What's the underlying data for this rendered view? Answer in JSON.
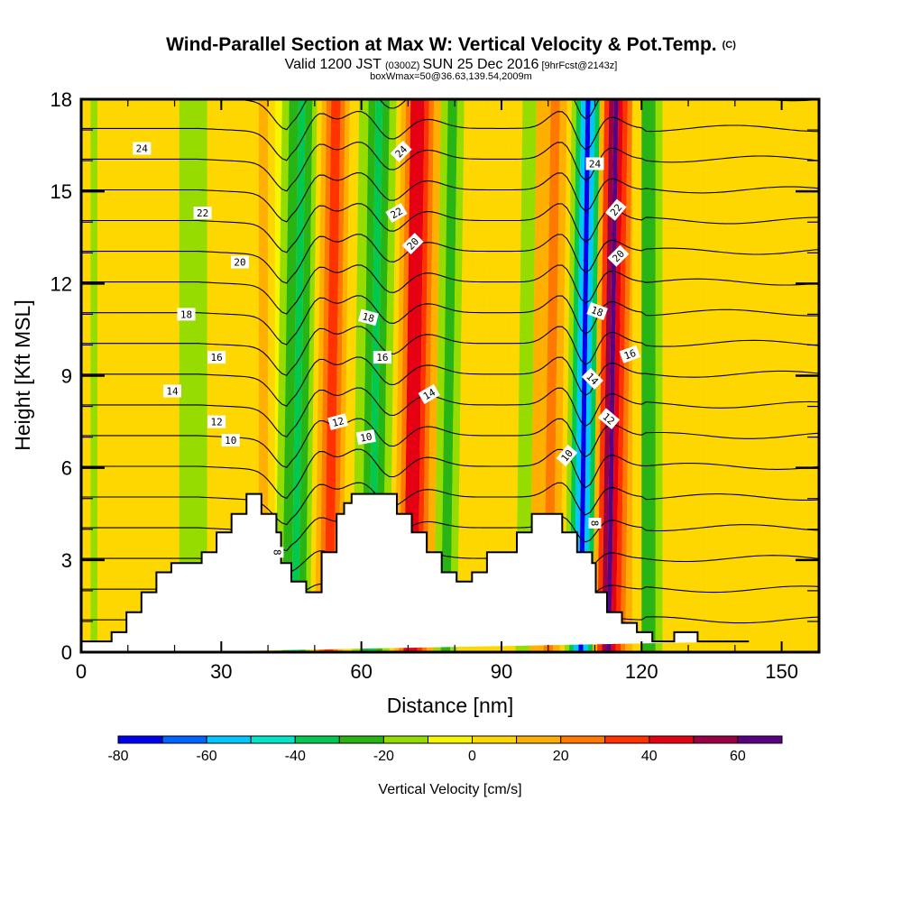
{
  "chart_data": {
    "type": "heatmap",
    "title": "Wind-Parallel Section at Max W: Vertical Velocity & Pot.Temp.",
    "title_mark": "(C)",
    "subtitle_main": "Valid 1200 JST",
    "subtitle_z": "(0300Z)",
    "subtitle_date": "SUN 25 Dec 2016",
    "subtitle_fcst": "[9hrFcst@2143z]",
    "subtitle2": "boxWmax=50@36.63,139.54,2009m",
    "xlabel": "Distance [nm]",
    "ylabel": "Height [Kft MSL]",
    "xlim": [
      0,
      158
    ],
    "ylim": [
      0,
      18
    ],
    "x_ticks": [
      "0",
      "30",
      "60",
      "90",
      "120",
      "150"
    ],
    "x_tick_values": [
      0,
      30,
      60,
      90,
      120,
      150
    ],
    "x_minor_step": 10,
    "y_ticks": [
      "0",
      "3",
      "6",
      "9",
      "12",
      "15",
      "18"
    ],
    "y_tick_values": [
      0,
      3,
      6,
      9,
      12,
      15,
      18
    ],
    "y_minor_step": 1,
    "colorbar": {
      "label": "Vertical Velocity [cm/s]",
      "bounds": [
        -80,
        -70,
        -60,
        -50,
        -40,
        -30,
        -20,
        -10,
        0,
        10,
        20,
        30,
        40,
        50,
        60,
        70
      ],
      "tick_labels": [
        "-80",
        "-60",
        "-40",
        "-20",
        "0",
        "20",
        "40",
        "60"
      ],
      "tick_values": [
        -80,
        -60,
        -40,
        -20,
        0,
        20,
        40,
        60
      ],
      "colors": [
        "#0000f0",
        "#0064ff",
        "#00c8ff",
        "#00e6c8",
        "#00c850",
        "#28b414",
        "#96dc00",
        "#f5f500",
        "#ffd700",
        "#ffaf00",
        "#ff7800",
        "#ff3200",
        "#e60014",
        "#9b0046",
        "#5a0082"
      ]
    },
    "velocity_bands": [
      {
        "x_nm": [
          0,
          2
        ],
        "w": 0
      },
      {
        "x_nm": [
          2,
          3.5
        ],
        "w": -15
      },
      {
        "x_nm": [
          3.5,
          8
        ],
        "w": 0
      },
      {
        "x_nm": [
          8,
          14
        ],
        "w": 5
      },
      {
        "x_nm": [
          14,
          21
        ],
        "w": 0
      },
      {
        "x_nm": [
          21,
          27
        ],
        "w": -15
      },
      {
        "x_nm": [
          27,
          30
        ],
        "w": 0
      },
      {
        "x_nm": [
          30,
          38
        ],
        "w": 5
      },
      {
        "x_nm": [
          38,
          40
        ],
        "w": 15
      },
      {
        "x_nm": [
          40,
          41.5
        ],
        "w": 0
      },
      {
        "x_nm": [
          41.5,
          43
        ],
        "w": -15
      },
      {
        "x_nm": [
          43,
          45
        ],
        "w": -25
      },
      {
        "x_nm": [
          45,
          46.5
        ],
        "w": -40
      },
      {
        "x_nm": [
          46.5,
          48
        ],
        "w": -25
      },
      {
        "x_nm": [
          48,
          49
        ],
        "w": -15
      },
      {
        "x_nm": [
          49,
          50
        ],
        "w": 0
      },
      {
        "x_nm": [
          50,
          51
        ],
        "w": 15
      },
      {
        "x_nm": [
          51,
          52
        ],
        "w": 25
      },
      {
        "x_nm": [
          52,
          54
        ],
        "w": 35
      },
      {
        "x_nm": [
          54,
          55
        ],
        "w": 25
      },
      {
        "x_nm": [
          55,
          56
        ],
        "w": 15
      },
      {
        "x_nm": [
          56,
          58
        ],
        "w": 0
      },
      {
        "x_nm": [
          58,
          60
        ],
        "w": -15
      },
      {
        "x_nm": [
          60,
          61.5
        ],
        "w": -25
      },
      {
        "x_nm": [
          61.5,
          63
        ],
        "w": -40
      },
      {
        "x_nm": [
          63,
          64.5
        ],
        "w": -25
      },
      {
        "x_nm": [
          64.5,
          66
        ],
        "w": -15
      },
      {
        "x_nm": [
          66,
          67
        ],
        "w": 0
      },
      {
        "x_nm": [
          67,
          68
        ],
        "w": 15
      },
      {
        "x_nm": [
          68,
          69
        ],
        "w": 25
      },
      {
        "x_nm": [
          69,
          72
        ],
        "w": 40
      },
      {
        "x_nm": [
          72,
          73
        ],
        "w": 35
      },
      {
        "x_nm": [
          73,
          74
        ],
        "w": 25
      },
      {
        "x_nm": [
          74,
          75.5
        ],
        "w": 15
      },
      {
        "x_nm": [
          75.5,
          77
        ],
        "w": -15
      },
      {
        "x_nm": [
          77,
          79
        ],
        "w": -25
      },
      {
        "x_nm": [
          79,
          80.5
        ],
        "w": -15
      },
      {
        "x_nm": [
          80.5,
          82
        ],
        "w": 0
      },
      {
        "x_nm": [
          82,
          86
        ],
        "w": 5
      },
      {
        "x_nm": [
          86,
          90
        ],
        "w": 0
      },
      {
        "x_nm": [
          90,
          93
        ],
        "w": 5
      },
      {
        "x_nm": [
          93,
          96
        ],
        "w": -15
      },
      {
        "x_nm": [
          96,
          99
        ],
        "w": 15
      },
      {
        "x_nm": [
          99,
          101
        ],
        "w": 25
      },
      {
        "x_nm": [
          101,
          102.5
        ],
        "w": 15
      },
      {
        "x_nm": [
          102.5,
          103.5
        ],
        "w": 0
      },
      {
        "x_nm": [
          103.5,
          104.5
        ],
        "w": -15
      },
      {
        "x_nm": [
          104.5,
          105.5
        ],
        "w": -35
      },
      {
        "x_nm": [
          105.5,
          106.5
        ],
        "w": -55
      },
      {
        "x_nm": [
          106.5,
          107.5
        ],
        "w": -75
      },
      {
        "x_nm": [
          107.5,
          108.5
        ],
        "w": -55
      },
      {
        "x_nm": [
          108.5,
          109.5
        ],
        "w": -35
      },
      {
        "x_nm": [
          109.5,
          110.5
        ],
        "w": 15
      },
      {
        "x_nm": [
          110.5,
          111.5
        ],
        "w": 35
      },
      {
        "x_nm": [
          111.5,
          112.5
        ],
        "w": 55
      },
      {
        "x_nm": [
          112.5,
          113.5
        ],
        "w": 65
      },
      {
        "x_nm": [
          113.5,
          114.5
        ],
        "w": 45
      },
      {
        "x_nm": [
          114.5,
          115.5
        ],
        "w": 35
      },
      {
        "x_nm": [
          115.5,
          116.5
        ],
        "w": 25
      },
      {
        "x_nm": [
          116.5,
          118
        ],
        "w": 15
      },
      {
        "x_nm": [
          118,
          120
        ],
        "w": 0
      },
      {
        "x_nm": [
          120,
          123
        ],
        "w": -25
      },
      {
        "x_nm": [
          123,
          124.5
        ],
        "w": -15
      },
      {
        "x_nm": [
          124.5,
          127
        ],
        "w": 0
      },
      {
        "x_nm": [
          127,
          134
        ],
        "w": 5
      },
      {
        "x_nm": [
          134,
          143
        ],
        "w": 0
      },
      {
        "x_nm": [
          143,
          158
        ],
        "w": 5
      }
    ],
    "terrain_kft": {
      "x_nm": [
        0,
        6.5,
        6.5,
        9.7,
        9.7,
        12.9,
        12.9,
        16.1,
        16.1,
        19.3,
        19.3,
        25.8,
        25.8,
        29,
        29,
        32.2,
        32.2,
        35.4,
        35.4,
        38.6,
        38.6,
        41.8,
        41.8,
        42.8,
        42.8,
        45,
        45,
        48.2,
        48.2,
        51.5,
        51.5,
        54.7,
        54.7,
        56.3,
        56.3,
        57.9,
        57.9,
        67.6,
        67.6,
        70.8,
        70.8,
        74,
        74,
        77.2,
        77.2,
        80.4,
        80.4,
        83.7,
        83.7,
        86.9,
        86.9,
        93.3,
        93.3,
        96.5,
        96.5,
        103,
        103,
        106.2,
        106.2,
        109.4,
        109.4,
        110.2,
        110.2,
        112.6,
        112.6,
        115.8,
        115.8,
        119,
        119,
        122.3,
        122.3,
        127,
        127,
        132,
        132,
        143,
        143,
        158
      ],
      "h_kft": [
        0.35,
        0.35,
        0.65,
        0.65,
        1.3,
        1.3,
        1.95,
        1.95,
        2.6,
        2.6,
        2.9,
        2.9,
        3.25,
        3.25,
        3.9,
        3.9,
        4.5,
        4.5,
        5.15,
        5.15,
        4.5,
        4.5,
        3.9,
        3.9,
        2.9,
        2.9,
        2.3,
        2.3,
        1.95,
        1.95,
        3.25,
        3.25,
        4.5,
        4.5,
        4.85,
        4.85,
        5.15,
        5.15,
        4.5,
        4.5,
        3.9,
        3.9,
        3.25,
        3.25,
        2.6,
        2.6,
        2.3,
        2.3,
        2.6,
        2.6,
        3.25,
        3.25,
        3.9,
        3.9,
        4.5,
        4.5,
        3.9,
        3.9,
        3.25,
        3.25,
        2.9,
        2.9,
        1.95,
        1.95,
        1.3,
        1.3,
        0.95,
        0.95,
        0.65,
        0.65,
        0.35,
        0.35,
        0.65,
        0.65,
        0.35,
        0.35
      ]
    },
    "theta_contours": {
      "levels": [
        8,
        9,
        10,
        11,
        12,
        13,
        14,
        15,
        16,
        17,
        18,
        19,
        20,
        21,
        22,
        23,
        24,
        25
      ],
      "labels": [
        {
          "text": "24",
          "x_nm": 13,
          "h_kft": 16.4,
          "angle": 0
        },
        {
          "text": "22",
          "x_nm": 26,
          "h_kft": 14.3,
          "angle": 0
        },
        {
          "text": "20",
          "x_nm": 34,
          "h_kft": 12.7,
          "angle": 0
        },
        {
          "text": "18",
          "x_nm": 22.5,
          "h_kft": 11.0,
          "angle": 0
        },
        {
          "text": "16",
          "x_nm": 29,
          "h_kft": 9.6,
          "angle": 0
        },
        {
          "text": "14",
          "x_nm": 19.5,
          "h_kft": 8.5,
          "angle": 0
        },
        {
          "text": "12",
          "x_nm": 29,
          "h_kft": 7.5,
          "angle": 0
        },
        {
          "text": "10",
          "x_nm": 32,
          "h_kft": 6.9,
          "angle": 0
        },
        {
          "text": "8",
          "x_nm": 42,
          "h_kft": 3.25,
          "angle": 90
        },
        {
          "text": "24",
          "x_nm": 68.5,
          "h_kft": 16.3,
          "angle": -45
        },
        {
          "text": "22",
          "x_nm": 67.5,
          "h_kft": 14.3,
          "angle": -30
        },
        {
          "text": "20",
          "x_nm": 71,
          "h_kft": 13.3,
          "angle": -45
        },
        {
          "text": "18",
          "x_nm": 61.5,
          "h_kft": 10.9,
          "angle": 15
        },
        {
          "text": "16",
          "x_nm": 64.5,
          "h_kft": 9.6,
          "angle": 0
        },
        {
          "text": "14",
          "x_nm": 74.5,
          "h_kft": 8.4,
          "angle": -30
        },
        {
          "text": "12",
          "x_nm": 55,
          "h_kft": 7.5,
          "angle": -15
        },
        {
          "text": "10",
          "x_nm": 61,
          "h_kft": 7.0,
          "angle": -10
        },
        {
          "text": "24",
          "x_nm": 110,
          "h_kft": 15.9,
          "angle": 0
        },
        {
          "text": "22",
          "x_nm": 114.5,
          "h_kft": 14.4,
          "angle": -50
        },
        {
          "text": "20",
          "x_nm": 115,
          "h_kft": 12.9,
          "angle": -45
        },
        {
          "text": "18",
          "x_nm": 110.5,
          "h_kft": 11.1,
          "angle": 20
        },
        {
          "text": "16",
          "x_nm": 117.5,
          "h_kft": 9.7,
          "angle": -20
        },
        {
          "text": "14",
          "x_nm": 109.5,
          "h_kft": 8.9,
          "angle": 45
        },
        {
          "text": "12",
          "x_nm": 113,
          "h_kft": 7.6,
          "angle": 40
        },
        {
          "text": "10",
          "x_nm": 104,
          "h_kft": 6.4,
          "angle": -50
        },
        {
          "text": "8",
          "x_nm": 110,
          "h_kft": 4.2,
          "angle": 90
        }
      ]
    }
  }
}
